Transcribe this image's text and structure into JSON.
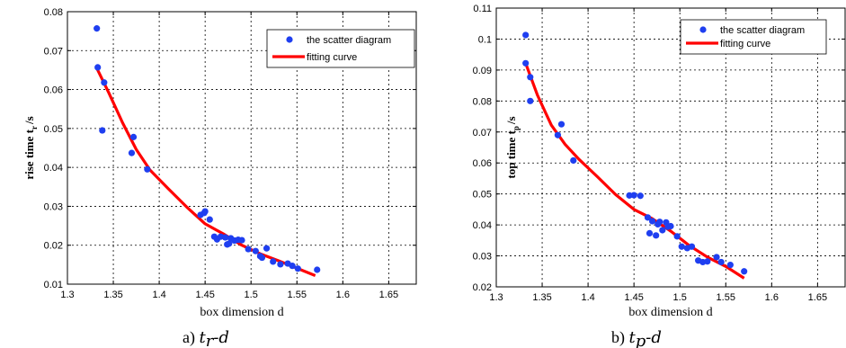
{
  "colors": {
    "scatter": "#1f3ff0",
    "fit": "#ff0000",
    "axis": "#000000",
    "background": "#ffffff"
  },
  "chart_data": [
    {
      "type": "scatter",
      "caption": "a) ",
      "caption_math": "t",
      "caption_sub": "r",
      "caption_tail": "-d",
      "xlabel": "box dimension d",
      "ylabel_main": "rise time t",
      "ylabel_sub": "r",
      "ylabel_unit": "/s",
      "xlim": [
        1.3,
        1.68
      ],
      "ylim": [
        0.01,
        0.08
      ],
      "xticks": [
        "1.3",
        "1.35",
        "1.4",
        "1.45",
        "1.5",
        "1.55",
        "1.6",
        "1.65"
      ],
      "xtick_values": [
        1.3,
        1.35,
        1.4,
        1.45,
        1.5,
        1.55,
        1.6,
        1.65
      ],
      "yticks": [
        "0.01",
        "0.02",
        "0.03",
        "0.04",
        "0.05",
        "0.06",
        "0.07",
        "0.08"
      ],
      "ytick_values": [
        0.01,
        0.02,
        0.03,
        0.04,
        0.05,
        0.06,
        0.07,
        0.08
      ],
      "grid": true,
      "legend_position": "top-right",
      "legend": [
        "the scatter diagram",
        "fitting curve"
      ],
      "scatter": {
        "x": [
          1.332,
          1.333,
          1.34,
          1.338,
          1.37,
          1.372,
          1.387,
          1.445,
          1.449,
          1.45,
          1.455,
          1.46,
          1.463,
          1.467,
          1.472,
          1.474,
          1.476,
          1.478,
          1.482,
          1.486,
          1.49,
          1.497,
          1.505,
          1.51,
          1.512,
          1.517,
          1.524,
          1.532,
          1.54,
          1.545,
          1.551,
          1.572
        ],
        "y": [
          0.0757,
          0.0657,
          0.0618,
          0.0495,
          0.0437,
          0.0478,
          0.0395,
          0.0278,
          0.0283,
          0.0287,
          0.0266,
          0.0222,
          0.0215,
          0.0222,
          0.022,
          0.0202,
          0.0204,
          0.0218,
          0.0212,
          0.0214,
          0.0213,
          0.019,
          0.0185,
          0.0172,
          0.0168,
          0.0192,
          0.0158,
          0.0151,
          0.0153,
          0.0147,
          0.014,
          0.0137
        ]
      },
      "fit": {
        "x": [
          1.332,
          1.345,
          1.36,
          1.375,
          1.39,
          1.41,
          1.43,
          1.45,
          1.47,
          1.49,
          1.51,
          1.53,
          1.55,
          1.57
        ],
        "y": [
          0.0655,
          0.0592,
          0.0515,
          0.0446,
          0.0393,
          0.0345,
          0.0298,
          0.0255,
          0.0229,
          0.02,
          0.0178,
          0.016,
          0.0141,
          0.0122
        ]
      }
    },
    {
      "type": "scatter",
      "caption": "b) ",
      "caption_math": "t",
      "caption_sub": "p",
      "caption_tail": "-d",
      "xlabel": "box dimension d",
      "ylabel_main": "top time t",
      "ylabel_sub": "p",
      "ylabel_unit": "/s",
      "xlim": [
        1.3,
        1.68
      ],
      "ylim": [
        0.02,
        0.11
      ],
      "xticks": [
        "1.3",
        "1.35",
        "1.4",
        "1.45",
        "1.5",
        "1.55",
        "1.6",
        "1.65"
      ],
      "xtick_values": [
        1.3,
        1.35,
        1.4,
        1.45,
        1.5,
        1.55,
        1.6,
        1.65
      ],
      "yticks": [
        "0.02",
        "0.03",
        "0.04",
        "0.05",
        "0.06",
        "0.07",
        "0.08",
        "0.09",
        "0.1",
        "0.11"
      ],
      "ytick_values": [
        0.02,
        0.03,
        0.04,
        0.05,
        0.06,
        0.07,
        0.08,
        0.09,
        0.1,
        0.11
      ],
      "grid": true,
      "legend_position": "top-right",
      "legend": [
        "the scatter diagram",
        "fitting curve"
      ],
      "scatter": {
        "x": [
          1.332,
          1.332,
          1.337,
          1.337,
          1.367,
          1.371,
          1.384,
          1.445,
          1.45,
          1.457,
          1.465,
          1.467,
          1.47,
          1.474,
          1.476,
          1.478,
          1.481,
          1.485,
          1.487,
          1.49,
          1.497,
          1.502,
          1.508,
          1.513,
          1.52,
          1.525,
          1.53,
          1.54,
          1.545,
          1.555,
          1.57
        ],
        "y": [
          0.1013,
          0.0922,
          0.0877,
          0.08,
          0.069,
          0.0725,
          0.0608,
          0.0495,
          0.0496,
          0.0494,
          0.0424,
          0.0373,
          0.0412,
          0.0366,
          0.0402,
          0.041,
          0.0383,
          0.0408,
          0.0394,
          0.0396,
          0.0363,
          0.033,
          0.0325,
          0.033,
          0.0285,
          0.028,
          0.0282,
          0.0296,
          0.028,
          0.0271,
          0.025
        ]
      },
      "fit": {
        "x": [
          1.332,
          1.345,
          1.36,
          1.375,
          1.39,
          1.41,
          1.43,
          1.45,
          1.47,
          1.49,
          1.51,
          1.53,
          1.55,
          1.57
        ],
        "y": [
          0.0922,
          0.0818,
          0.0722,
          0.066,
          0.0612,
          0.0556,
          0.0498,
          0.045,
          0.042,
          0.038,
          0.0334,
          0.0296,
          0.0266,
          0.0228
        ]
      }
    }
  ]
}
